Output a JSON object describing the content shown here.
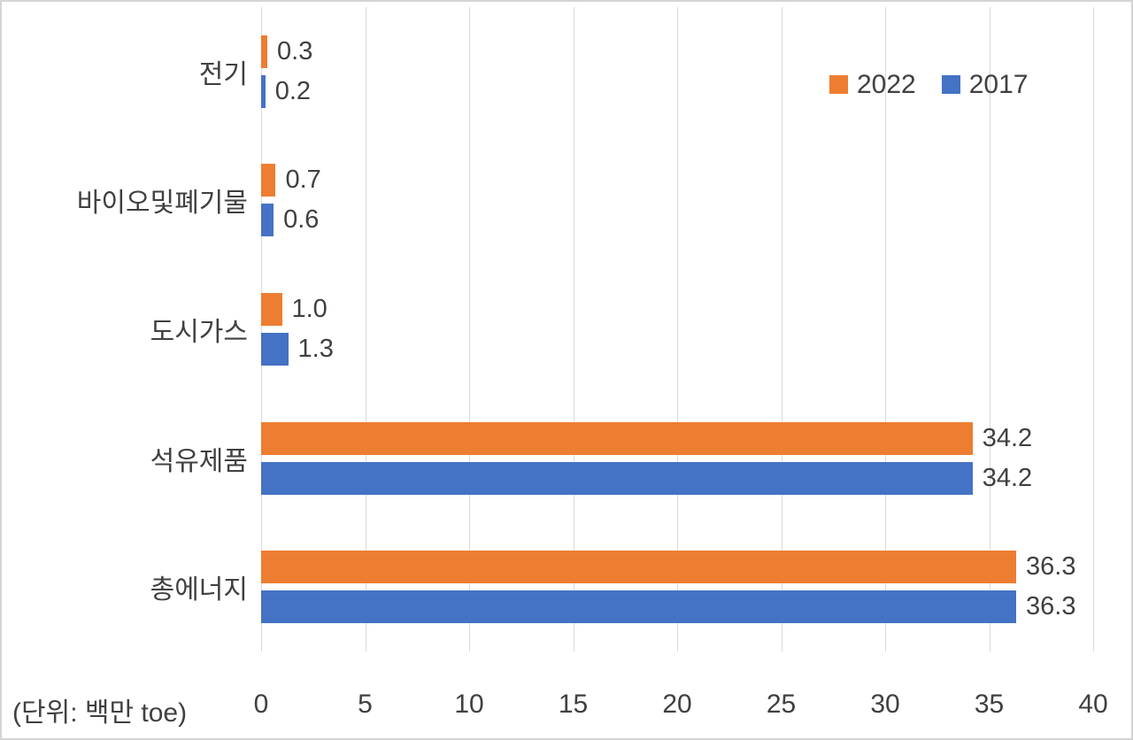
{
  "chart_data": {
    "type": "bar",
    "orientation": "horizontal",
    "title": "",
    "unit_label": "(단위: 백만 toe)",
    "categories": [
      "전기",
      "바이오및폐기물",
      "도시가스",
      "석유제품",
      "총에너지"
    ],
    "series": [
      {
        "name": "2022",
        "color": "#ED7D31",
        "values": [
          0.3,
          0.7,
          1.0,
          34.2,
          36.3
        ]
      },
      {
        "name": "2017",
        "color": "#4472C4",
        "values": [
          0.2,
          0.6,
          1.3,
          34.2,
          36.3
        ]
      }
    ],
    "value_labels": [
      [
        "0.3",
        "0.7",
        "1.0",
        "34.2",
        "36.3"
      ],
      [
        "0.2",
        "0.6",
        "1.3",
        "34.2",
        "36.3"
      ]
    ],
    "xlim": [
      0,
      40
    ],
    "x_ticks": [
      0,
      5,
      10,
      15,
      20,
      25,
      30,
      35,
      40
    ],
    "grid": "vertical-only",
    "legend_position": "top-right",
    "colors": {
      "text": "#404040",
      "gridline": "#D9D9D9",
      "border": "#D4D4D4",
      "background": "#FFFFFF"
    }
  }
}
